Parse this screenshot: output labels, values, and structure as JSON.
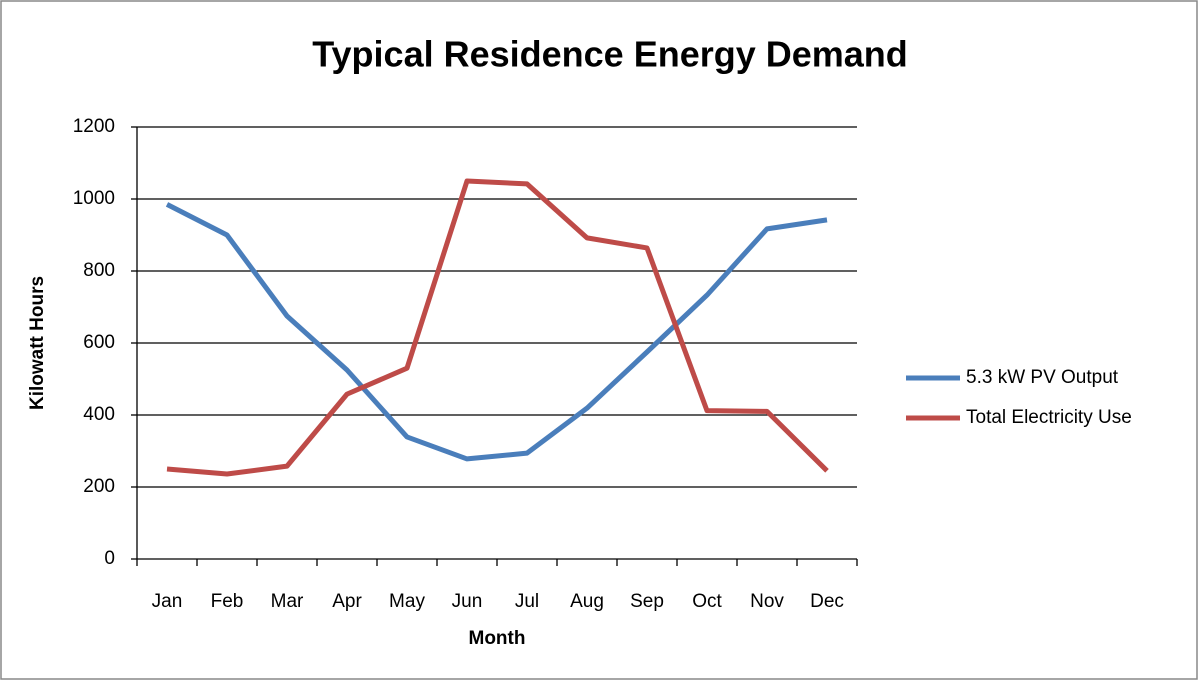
{
  "chart_data": {
    "type": "line",
    "title": "Typical Residence Energy Demand",
    "x_label": "Month",
    "y_label": "Kilowatt Hours",
    "categories": [
      "Jan",
      "Feb",
      "Mar",
      "Apr",
      "May",
      "Jun",
      "Jul",
      "Aug",
      "Sep",
      "Oct",
      "Nov",
      "Dec"
    ],
    "series": [
      {
        "name": "5.3 kW PV Output",
        "color": "#4a7ebb",
        "values": [
          985,
          900,
          675,
          525,
          339,
          278,
          294,
          419,
          575,
          733,
          917,
          942
        ]
      },
      {
        "name": "Total Electricity Use",
        "color": "#be4b48",
        "values": [
          250,
          236,
          258,
          458,
          530,
          1050,
          1042,
          892,
          864,
          412,
          410,
          245
        ]
      }
    ],
    "ylim": [
      0,
      1200
    ],
    "yticks": [
      0,
      200,
      400,
      600,
      800,
      1000,
      1200
    ],
    "grid": true,
    "legend": "right"
  }
}
